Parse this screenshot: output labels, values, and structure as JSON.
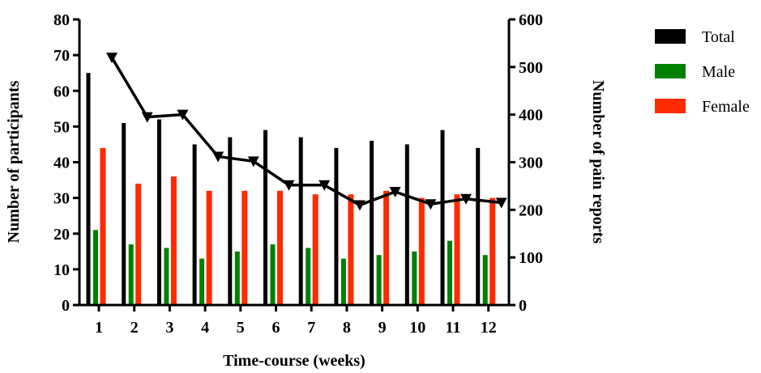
{
  "chart_data": {
    "type": "bar",
    "categories": [
      "1",
      "2",
      "3",
      "4",
      "5",
      "6",
      "7",
      "8",
      "9",
      "10",
      "11",
      "12"
    ],
    "series": [
      {
        "name": "Total",
        "color": "#000000",
        "axis": "left",
        "values": [
          65,
          51,
          52,
          45,
          47,
          49,
          47,
          44,
          46,
          45,
          49,
          44
        ]
      },
      {
        "name": "Male",
        "color": "#008000",
        "axis": "left",
        "values": [
          21,
          17,
          16,
          13,
          15,
          17,
          16,
          13,
          14,
          15,
          18,
          14
        ]
      },
      {
        "name": "Female",
        "color": "#ff2a00",
        "axis": "left",
        "values": [
          44,
          34,
          36,
          32,
          32,
          32,
          31,
          31,
          32,
          30,
          31,
          30
        ]
      }
    ],
    "line_series": {
      "type": "line",
      "axis": "right",
      "marker": "down-triangle",
      "color": "#000000",
      "values": [
        520,
        395,
        400,
        312,
        302,
        252,
        252,
        210,
        238,
        212,
        223,
        215
      ]
    },
    "xlabel": "Time-course (weeks)",
    "ylabel": "Number of participants",
    "y2label": "Number of pain reports",
    "ylim": [
      0,
      80
    ],
    "y2lim": [
      0,
      600
    ],
    "yticks": [
      "0",
      "10",
      "20",
      "30",
      "40",
      "50",
      "60",
      "70",
      "80"
    ],
    "y2ticks": [
      "0",
      "100",
      "200",
      "300",
      "400",
      "500",
      "600"
    ],
    "legend": {
      "position": "right",
      "entries": [
        "Total",
        "Male",
        "Female"
      ]
    },
    "grid": false
  }
}
